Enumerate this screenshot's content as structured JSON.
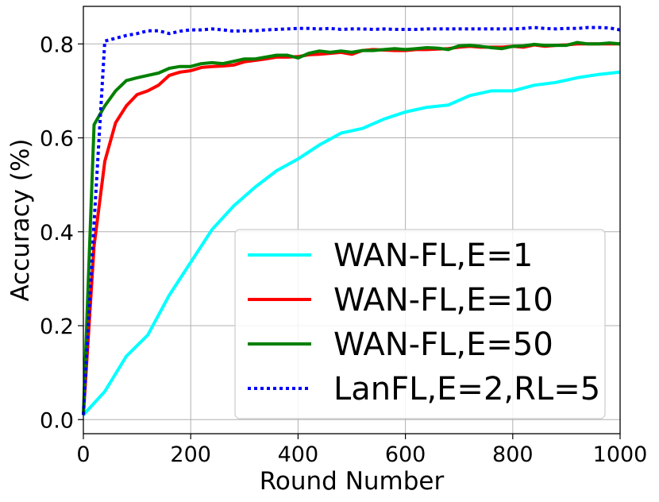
{
  "chart_data": {
    "type": "line",
    "xlabel": "Round Number",
    "ylabel": "Accuracy (%)",
    "xlim": [
      0,
      1000
    ],
    "ylim": [
      -0.03,
      0.88
    ],
    "xticks": [
      "0",
      "200",
      "400",
      "600",
      "800",
      "1000"
    ],
    "yticks": [
      "0.0",
      "0.2",
      "0.4",
      "0.6",
      "0.8"
    ],
    "grid": true,
    "legend_position": "lower-right",
    "series": [
      {
        "name": "WAN-FL,E=1",
        "color": "#00ffff",
        "style": "solid",
        "x": [
          0,
          40,
          80,
          120,
          160,
          200,
          240,
          280,
          320,
          360,
          400,
          440,
          480,
          520,
          560,
          600,
          640,
          680,
          720,
          760,
          800,
          840,
          880,
          920,
          960,
          1000
        ],
        "y": [
          0.01,
          0.06,
          0.135,
          0.18,
          0.265,
          0.335,
          0.405,
          0.455,
          0.495,
          0.53,
          0.555,
          0.585,
          0.61,
          0.62,
          0.64,
          0.655,
          0.665,
          0.67,
          0.69,
          0.7,
          0.7,
          0.712,
          0.718,
          0.728,
          0.735,
          0.74
        ]
      },
      {
        "name": "WAN-FL,E=10",
        "color": "#ff0000",
        "style": "solid",
        "x": [
          0,
          20,
          40,
          60,
          80,
          100,
          120,
          140,
          160,
          180,
          200,
          220,
          240,
          260,
          280,
          300,
          320,
          340,
          360,
          380,
          400,
          420,
          440,
          460,
          480,
          500,
          520,
          540,
          560,
          580,
          600,
          620,
          640,
          660,
          680,
          700,
          720,
          740,
          760,
          780,
          800,
          820,
          840,
          860,
          880,
          900,
          920,
          940,
          960,
          980,
          1000
        ],
        "y": [
          0.01,
          0.37,
          0.55,
          0.632,
          0.668,
          0.692,
          0.7,
          0.712,
          0.733,
          0.74,
          0.743,
          0.75,
          0.752,
          0.753,
          0.755,
          0.762,
          0.765,
          0.768,
          0.772,
          0.772,
          0.773,
          0.777,
          0.778,
          0.78,
          0.782,
          0.778,
          0.786,
          0.788,
          0.787,
          0.786,
          0.786,
          0.788,
          0.788,
          0.789,
          0.79,
          0.793,
          0.795,
          0.793,
          0.793,
          0.793,
          0.795,
          0.793,
          0.798,
          0.795,
          0.797,
          0.798,
          0.8,
          0.8,
          0.8,
          0.8,
          0.8
        ]
      },
      {
        "name": "WAN-FL,E=50",
        "color": "#008000",
        "style": "solid",
        "x": [
          0,
          20,
          40,
          60,
          80,
          100,
          120,
          140,
          160,
          180,
          200,
          220,
          240,
          260,
          280,
          300,
          320,
          340,
          360,
          380,
          400,
          420,
          440,
          460,
          480,
          500,
          520,
          540,
          560,
          580,
          600,
          620,
          640,
          660,
          680,
          700,
          720,
          740,
          760,
          780,
          800,
          820,
          840,
          860,
          880,
          900,
          920,
          940,
          960,
          980,
          1000
        ],
        "y": [
          0.01,
          0.628,
          0.668,
          0.7,
          0.722,
          0.728,
          0.733,
          0.738,
          0.748,
          0.752,
          0.752,
          0.758,
          0.76,
          0.758,
          0.763,
          0.768,
          0.768,
          0.772,
          0.776,
          0.776,
          0.77,
          0.78,
          0.785,
          0.782,
          0.785,
          0.782,
          0.786,
          0.786,
          0.788,
          0.79,
          0.788,
          0.79,
          0.792,
          0.791,
          0.788,
          0.796,
          0.797,
          0.795,
          0.792,
          0.79,
          0.795,
          0.796,
          0.799,
          0.797,
          0.797,
          0.797,
          0.803,
          0.8,
          0.8,
          0.802,
          0.8
        ]
      },
      {
        "name": "LanFL,E=2,RL=5",
        "color": "#0000ff",
        "style": "dotted",
        "x": [
          0,
          20,
          40,
          60,
          80,
          100,
          120,
          140,
          160,
          180,
          200,
          220,
          240,
          260,
          280,
          300,
          320,
          340,
          360,
          380,
          400,
          420,
          440,
          460,
          480,
          500,
          520,
          540,
          560,
          580,
          600,
          620,
          640,
          660,
          680,
          700,
          720,
          740,
          760,
          780,
          800,
          820,
          840,
          860,
          880,
          900,
          920,
          940,
          960,
          980,
          1000
        ],
        "y": [
          0.01,
          0.42,
          0.806,
          0.812,
          0.818,
          0.822,
          0.828,
          0.828,
          0.822,
          0.827,
          0.83,
          0.83,
          0.832,
          0.83,
          0.827,
          0.828,
          0.828,
          0.83,
          0.831,
          0.832,
          0.833,
          0.833,
          0.832,
          0.833,
          0.831,
          0.832,
          0.832,
          0.831,
          0.832,
          0.831,
          0.831,
          0.831,
          0.832,
          0.832,
          0.832,
          0.832,
          0.832,
          0.832,
          0.832,
          0.832,
          0.832,
          0.833,
          0.835,
          0.833,
          0.832,
          0.833,
          0.833,
          0.835,
          0.835,
          0.834,
          0.83
        ]
      }
    ]
  }
}
